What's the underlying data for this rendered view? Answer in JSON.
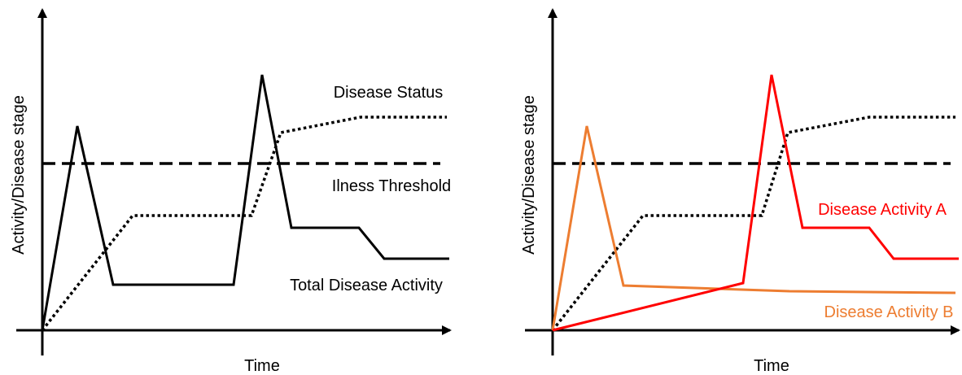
{
  "colors": {
    "axis": "#000000",
    "total_activity": "#000000",
    "activity_a": "#ff0000",
    "activity_b": "#ed7d31"
  },
  "left_panel": {
    "y_axis_label": "Activity/Disease stage",
    "x_axis_label": "Time",
    "labels": {
      "disease_status": "Disease Status",
      "illness_threshold": "Ilness Threshold",
      "total_disease_activity": "Total Disease Activity"
    }
  },
  "right_panel": {
    "y_axis_label": "Activity/Disease stage",
    "x_axis_label": "Time",
    "labels": {
      "disease_activity_a": "Disease Activity A",
      "disease_activity_b": "Disease Activity B"
    }
  }
}
